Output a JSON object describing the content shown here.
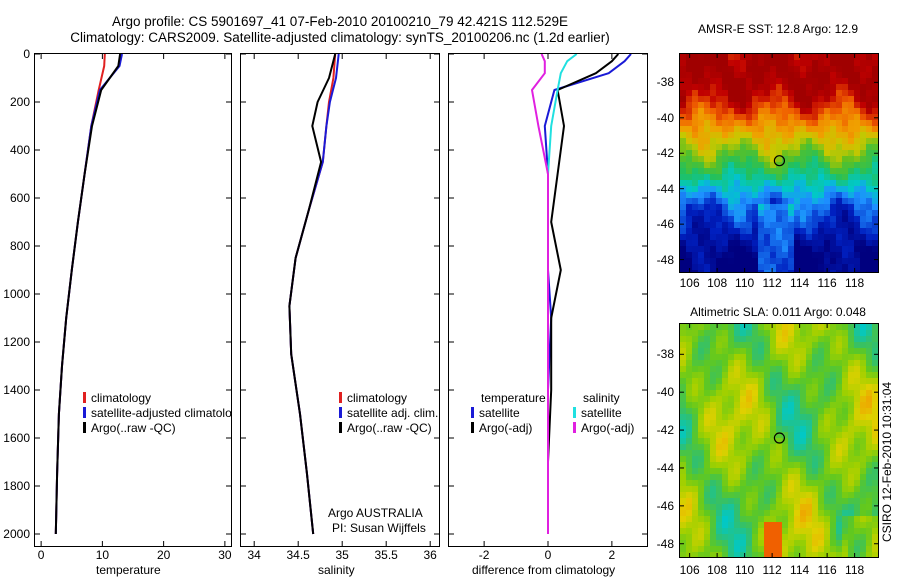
{
  "title": {
    "line1": "Argo profile: CS 5901697_41 07-Feb-2010 20100210_79 42.421S 112.529E",
    "line2": "Climatology: CARS2009. Satellite-adjusted climatology: synTS_20100206.nc (1.2d earlier)"
  },
  "colors": {
    "red": "#e02020",
    "blue": "#1a1ad6",
    "black": "#000000",
    "cyan": "#20e0e0",
    "magenta": "#e020e0"
  },
  "panels": {
    "temperature": {
      "xlabel": "temperature",
      "xticks": [
        "0",
        "10",
        "20",
        "30"
      ],
      "legend": [
        {
          "label": "climatology",
          "color": "#e02020"
        },
        {
          "label": "satellite-adjusted climatology",
          "color": "#1a1ad6"
        },
        {
          "label": "Argo(..raw -QC)",
          "color": "#000000"
        }
      ]
    },
    "salinity": {
      "xlabel": "salinity",
      "xticks": [
        "34",
        "34.5",
        "35",
        "35.5",
        "36"
      ],
      "legend": [
        {
          "label": "climatology",
          "color": "#e02020"
        },
        {
          "label": "satellite adj. clim.",
          "color": "#1a1ad6"
        },
        {
          "label": "Argo(..raw -QC)",
          "color": "#000000"
        }
      ],
      "note1": "Argo AUSTRALIA",
      "note2": "PI: Susan Wijffels"
    },
    "difference": {
      "xlabel": "difference from climatology",
      "xticks": [
        "-2",
        "0",
        "2"
      ],
      "legend_left_title": "temperature",
      "legend_right_title": "salinity",
      "legend_left": [
        {
          "label": "satellite",
          "color": "#1a1ad6"
        },
        {
          "label": "Argo(-adj)",
          "color": "#000000"
        }
      ],
      "legend_right": [
        {
          "label": "satellite",
          "color": "#20e0e0"
        },
        {
          "label": "Argo(-adj)",
          "color": "#e020e0"
        }
      ]
    }
  },
  "depth_ticks": [
    "0",
    "200",
    "400",
    "600",
    "800",
    "1000",
    "1200",
    "1400",
    "1600",
    "1800",
    "2000"
  ],
  "maps": {
    "sst_title": "AMSR-E SST: 12.8  Argo: 12.9",
    "sla_title": "Altimetric SLA: 0.011  Argo: 0.048",
    "lat_ticks": [
      "-38",
      "-40",
      "-42",
      "-44",
      "-46",
      "-48"
    ],
    "lon_ticks": [
      "106",
      "108",
      "110",
      "112",
      "114",
      "116",
      "118"
    ]
  },
  "stamp": "CSIRO 12-Feb-2010 10:31:04",
  "chart_data": [
    {
      "type": "line",
      "title": "",
      "xlabel": "temperature",
      "ylabel": "",
      "xlim": [
        -1,
        31
      ],
      "ylim": [
        2050,
        0
      ],
      "y_axis_inverted": true,
      "series": [
        {
          "name": "climatology",
          "color": "#e02020",
          "x": [
            10.4,
            10.3,
            9.4,
            8.2,
            7.1,
            6.0,
            5.0,
            4.1,
            3.4,
            2.9,
            2.6,
            2.4
          ],
          "y": [
            0,
            50,
            150,
            300,
            500,
            700,
            900,
            1100,
            1300,
            1500,
            1750,
            2000
          ]
        },
        {
          "name": "satellite-adjusted climatology",
          "color": "#1a1ad6",
          "x": [
            13.2,
            12.8,
            9.6,
            8.2,
            7.1,
            6.0,
            5.0,
            4.1,
            3.4,
            2.9,
            2.6,
            2.4
          ],
          "y": [
            0,
            50,
            150,
            300,
            500,
            700,
            900,
            1100,
            1300,
            1500,
            1750,
            2000
          ]
        },
        {
          "name": "Argo(..raw -QC)",
          "color": "#000000",
          "x": [
            12.9,
            12.6,
            9.8,
            8.3,
            7.1,
            6.0,
            5.0,
            4.1,
            3.4,
            2.9,
            2.6,
            2.4
          ],
          "y": [
            0,
            50,
            150,
            300,
            500,
            700,
            900,
            1100,
            1300,
            1500,
            1750,
            2000
          ]
        }
      ]
    },
    {
      "type": "line",
      "title": "",
      "xlabel": "salinity",
      "ylabel": "",
      "xlim": [
        33.85,
        36.1
      ],
      "ylim": [
        2050,
        0
      ],
      "y_axis_inverted": true,
      "series": [
        {
          "name": "climatology",
          "color": "#e02020",
          "x": [
            34.92,
            34.9,
            34.85,
            34.82,
            34.78,
            34.62,
            34.47,
            34.4,
            34.42,
            34.52,
            34.6,
            34.67
          ],
          "y": [
            0,
            100,
            200,
            300,
            450,
            650,
            850,
            1050,
            1250,
            1500,
            1750,
            2000
          ]
        },
        {
          "name": "satellite adj. clim.",
          "color": "#1a1ad6",
          "x": [
            34.96,
            34.93,
            34.86,
            34.82,
            34.78,
            34.62,
            34.47,
            34.4,
            34.42,
            34.52,
            34.6,
            34.67
          ],
          "y": [
            0,
            100,
            200,
            300,
            450,
            650,
            850,
            1050,
            1250,
            1500,
            1750,
            2000
          ]
        },
        {
          "name": "Argo(..raw -QC)",
          "color": "#000000",
          "x": [
            34.92,
            34.85,
            34.72,
            34.66,
            34.76,
            34.62,
            34.47,
            34.4,
            34.42,
            34.52,
            34.6,
            34.67
          ],
          "y": [
            0,
            100,
            200,
            300,
            450,
            650,
            850,
            1050,
            1250,
            1500,
            1750,
            2000
          ]
        }
      ]
    },
    {
      "type": "line",
      "title": "",
      "xlabel": "difference from climatology",
      "ylabel": "",
      "xlim": [
        -3.1,
        3.1
      ],
      "ylim": [
        2050,
        0
      ],
      "y_axis_inverted": true,
      "series": [
        {
          "name": "temperature satellite",
          "color": "#1a1ad6",
          "x": [
            2.6,
            2.4,
            1.9,
            0.2,
            -0.1,
            0.0,
            0.0,
            0.0,
            0.1,
            0.0,
            0.0,
            0.0
          ],
          "y": [
            0,
            30,
            80,
            150,
            300,
            500,
            700,
            900,
            1100,
            1400,
            1700,
            2000
          ]
        },
        {
          "name": "temperature Argo(-adj)",
          "color": "#000000",
          "x": [
            2.2,
            2.0,
            1.5,
            0.3,
            0.5,
            0.3,
            0.1,
            0.4,
            0.1,
            0.1,
            0.0,
            0.0
          ],
          "y": [
            0,
            30,
            80,
            150,
            300,
            500,
            700,
            900,
            1100,
            1400,
            1700,
            2000
          ]
        },
        {
          "name": "salinity satellite",
          "color": "#20e0e0",
          "x": [
            0.9,
            0.6,
            0.4,
            0.3,
            0.1,
            0.0,
            0.0,
            0.0,
            0.0,
            0.0,
            0.0,
            0.0
          ],
          "y": [
            0,
            30,
            80,
            150,
            300,
            500,
            700,
            900,
            1100,
            1400,
            1700,
            2000
          ]
        },
        {
          "name": "salinity Argo(-adj)",
          "color": "#e020e0",
          "x": [
            -0.2,
            -0.1,
            -0.1,
            -0.5,
            -0.3,
            0.0,
            0.0,
            0.0,
            0.0,
            0.0,
            0.0,
            0.0
          ],
          "y": [
            0,
            30,
            80,
            150,
            300,
            500,
            700,
            900,
            1100,
            1400,
            1700,
            2000
          ]
        }
      ]
    },
    {
      "type": "heatmap",
      "title": "AMSR-E SST: 12.8  Argo: 12.9",
      "xlim": [
        105.3,
        119.7
      ],
      "ylim": [
        -48.7,
        -36.4
      ],
      "marker": {
        "lon": 112.53,
        "lat": -42.42
      },
      "lat": [
        -37,
        -38,
        -39,
        -40,
        -41,
        -42,
        -43,
        -44,
        -45,
        -46,
        -47,
        -48
      ],
      "values": [
        16.5,
        16.5,
        16.0,
        15.0,
        14.0,
        13.0,
        12.0,
        11.0,
        10.0,
        9.5,
        9.0,
        8.5
      ]
    },
    {
      "type": "heatmap",
      "title": "Altimetric SLA: 0.011  Argo: 0.048",
      "xlim": [
        105.3,
        119.7
      ],
      "ylim": [
        -48.7,
        -36.4
      ],
      "marker": {
        "lon": 112.53,
        "lat": -42.42
      }
    }
  ]
}
